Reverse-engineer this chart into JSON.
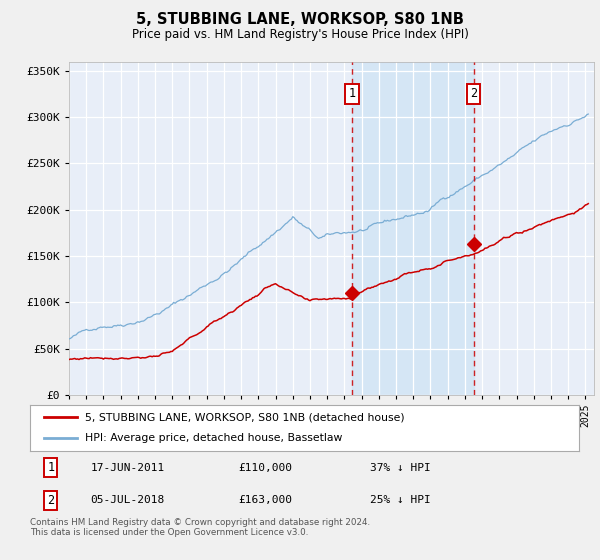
{
  "title": "5, STUBBING LANE, WORKSOP, S80 1NB",
  "subtitle": "Price paid vs. HM Land Registry's House Price Index (HPI)",
  "red_label": "5, STUBBING LANE, WORKSOP, S80 1NB (detached house)",
  "blue_label": "HPI: Average price, detached house, Bassetlaw",
  "annotation1_date": "17-JUN-2011",
  "annotation1_price": 110000,
  "annotation1_text": "37% ↓ HPI",
  "annotation2_date": "05-JUL-2018",
  "annotation2_price": 163000,
  "annotation2_text": "25% ↓ HPI",
  "xlim_start": 1995.0,
  "xlim_end": 2025.5,
  "ylim_min": 0,
  "ylim_max": 360000,
  "footer": "Contains HM Land Registry data © Crown copyright and database right 2024.\nThis data is licensed under the Open Government Licence v3.0.",
  "fig_bg_color": "#f0f0f0",
  "plot_bg_color": "#e8eef8",
  "red_color": "#cc0000",
  "blue_color": "#7aadd4",
  "annotation_vline_color": "#cc0000",
  "grid_color": "#ffffff",
  "highlight_region_color": "#cfe4f5",
  "ann1_x": 2011.46,
  "ann2_x": 2018.5
}
